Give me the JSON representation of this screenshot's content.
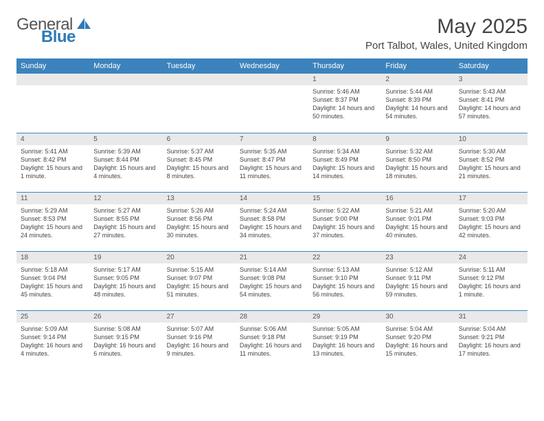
{
  "logo": {
    "general": "General",
    "blue": "Blue"
  },
  "title": "May 2025",
  "location": "Port Talbot, Wales, United Kingdom",
  "colors": {
    "header_bg": "#3c83bd",
    "daynum_bg": "#e9e9e9",
    "border": "#3c83bd"
  },
  "day_headers": [
    "Sunday",
    "Monday",
    "Tuesday",
    "Wednesday",
    "Thursday",
    "Friday",
    "Saturday"
  ],
  "weeks": [
    [
      null,
      null,
      null,
      null,
      {
        "n": "1",
        "sunrise": "Sunrise: 5:46 AM",
        "sunset": "Sunset: 8:37 PM",
        "daylight": "Daylight: 14 hours and 50 minutes."
      },
      {
        "n": "2",
        "sunrise": "Sunrise: 5:44 AM",
        "sunset": "Sunset: 8:39 PM",
        "daylight": "Daylight: 14 hours and 54 minutes."
      },
      {
        "n": "3",
        "sunrise": "Sunrise: 5:43 AM",
        "sunset": "Sunset: 8:41 PM",
        "daylight": "Daylight: 14 hours and 57 minutes."
      }
    ],
    [
      {
        "n": "4",
        "sunrise": "Sunrise: 5:41 AM",
        "sunset": "Sunset: 8:42 PM",
        "daylight": "Daylight: 15 hours and 1 minute."
      },
      {
        "n": "5",
        "sunrise": "Sunrise: 5:39 AM",
        "sunset": "Sunset: 8:44 PM",
        "daylight": "Daylight: 15 hours and 4 minutes."
      },
      {
        "n": "6",
        "sunrise": "Sunrise: 5:37 AM",
        "sunset": "Sunset: 8:45 PM",
        "daylight": "Daylight: 15 hours and 8 minutes."
      },
      {
        "n": "7",
        "sunrise": "Sunrise: 5:35 AM",
        "sunset": "Sunset: 8:47 PM",
        "daylight": "Daylight: 15 hours and 11 minutes."
      },
      {
        "n": "8",
        "sunrise": "Sunrise: 5:34 AM",
        "sunset": "Sunset: 8:49 PM",
        "daylight": "Daylight: 15 hours and 14 minutes."
      },
      {
        "n": "9",
        "sunrise": "Sunrise: 5:32 AM",
        "sunset": "Sunset: 8:50 PM",
        "daylight": "Daylight: 15 hours and 18 minutes."
      },
      {
        "n": "10",
        "sunrise": "Sunrise: 5:30 AM",
        "sunset": "Sunset: 8:52 PM",
        "daylight": "Daylight: 15 hours and 21 minutes."
      }
    ],
    [
      {
        "n": "11",
        "sunrise": "Sunrise: 5:29 AM",
        "sunset": "Sunset: 8:53 PM",
        "daylight": "Daylight: 15 hours and 24 minutes."
      },
      {
        "n": "12",
        "sunrise": "Sunrise: 5:27 AM",
        "sunset": "Sunset: 8:55 PM",
        "daylight": "Daylight: 15 hours and 27 minutes."
      },
      {
        "n": "13",
        "sunrise": "Sunrise: 5:26 AM",
        "sunset": "Sunset: 8:56 PM",
        "daylight": "Daylight: 15 hours and 30 minutes."
      },
      {
        "n": "14",
        "sunrise": "Sunrise: 5:24 AM",
        "sunset": "Sunset: 8:58 PM",
        "daylight": "Daylight: 15 hours and 34 minutes."
      },
      {
        "n": "15",
        "sunrise": "Sunrise: 5:22 AM",
        "sunset": "Sunset: 9:00 PM",
        "daylight": "Daylight: 15 hours and 37 minutes."
      },
      {
        "n": "16",
        "sunrise": "Sunrise: 5:21 AM",
        "sunset": "Sunset: 9:01 PM",
        "daylight": "Daylight: 15 hours and 40 minutes."
      },
      {
        "n": "17",
        "sunrise": "Sunrise: 5:20 AM",
        "sunset": "Sunset: 9:03 PM",
        "daylight": "Daylight: 15 hours and 42 minutes."
      }
    ],
    [
      {
        "n": "18",
        "sunrise": "Sunrise: 5:18 AM",
        "sunset": "Sunset: 9:04 PM",
        "daylight": "Daylight: 15 hours and 45 minutes."
      },
      {
        "n": "19",
        "sunrise": "Sunrise: 5:17 AM",
        "sunset": "Sunset: 9:05 PM",
        "daylight": "Daylight: 15 hours and 48 minutes."
      },
      {
        "n": "20",
        "sunrise": "Sunrise: 5:15 AM",
        "sunset": "Sunset: 9:07 PM",
        "daylight": "Daylight: 15 hours and 51 minutes."
      },
      {
        "n": "21",
        "sunrise": "Sunrise: 5:14 AM",
        "sunset": "Sunset: 9:08 PM",
        "daylight": "Daylight: 15 hours and 54 minutes."
      },
      {
        "n": "22",
        "sunrise": "Sunrise: 5:13 AM",
        "sunset": "Sunset: 9:10 PM",
        "daylight": "Daylight: 15 hours and 56 minutes."
      },
      {
        "n": "23",
        "sunrise": "Sunrise: 5:12 AM",
        "sunset": "Sunset: 9:11 PM",
        "daylight": "Daylight: 15 hours and 59 minutes."
      },
      {
        "n": "24",
        "sunrise": "Sunrise: 5:11 AM",
        "sunset": "Sunset: 9:12 PM",
        "daylight": "Daylight: 16 hours and 1 minute."
      }
    ],
    [
      {
        "n": "25",
        "sunrise": "Sunrise: 5:09 AM",
        "sunset": "Sunset: 9:14 PM",
        "daylight": "Daylight: 16 hours and 4 minutes."
      },
      {
        "n": "26",
        "sunrise": "Sunrise: 5:08 AM",
        "sunset": "Sunset: 9:15 PM",
        "daylight": "Daylight: 16 hours and 6 minutes."
      },
      {
        "n": "27",
        "sunrise": "Sunrise: 5:07 AM",
        "sunset": "Sunset: 9:16 PM",
        "daylight": "Daylight: 16 hours and 9 minutes."
      },
      {
        "n": "28",
        "sunrise": "Sunrise: 5:06 AM",
        "sunset": "Sunset: 9:18 PM",
        "daylight": "Daylight: 16 hours and 11 minutes."
      },
      {
        "n": "29",
        "sunrise": "Sunrise: 5:05 AM",
        "sunset": "Sunset: 9:19 PM",
        "daylight": "Daylight: 16 hours and 13 minutes."
      },
      {
        "n": "30",
        "sunrise": "Sunrise: 5:04 AM",
        "sunset": "Sunset: 9:20 PM",
        "daylight": "Daylight: 16 hours and 15 minutes."
      },
      {
        "n": "31",
        "sunrise": "Sunrise: 5:04 AM",
        "sunset": "Sunset: 9:21 PM",
        "daylight": "Daylight: 16 hours and 17 minutes."
      }
    ]
  ]
}
